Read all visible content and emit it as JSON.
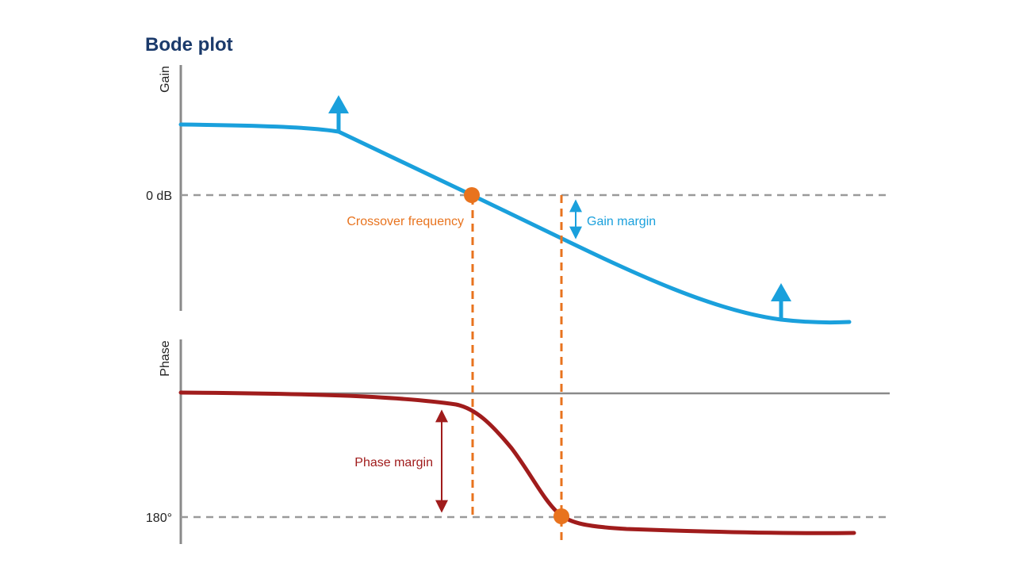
{
  "title": "Bode plot",
  "gain_axis_label": "Gain",
  "phase_axis_label": "Phase",
  "zero_db_label": "0 dB",
  "phase_180_label": "180°",
  "crossover_label": "Crossover frequency",
  "gain_margin_label": "Gain margin",
  "phase_margin_label": "Phase margin",
  "colors": {
    "title": "#1b3a6b",
    "gain_curve": "#1aa0dc",
    "phase_curve": "#a01c1c",
    "crossover": "#e8731e",
    "axis": "#8a8a8a",
    "reference": "#9a9a9a"
  }
}
